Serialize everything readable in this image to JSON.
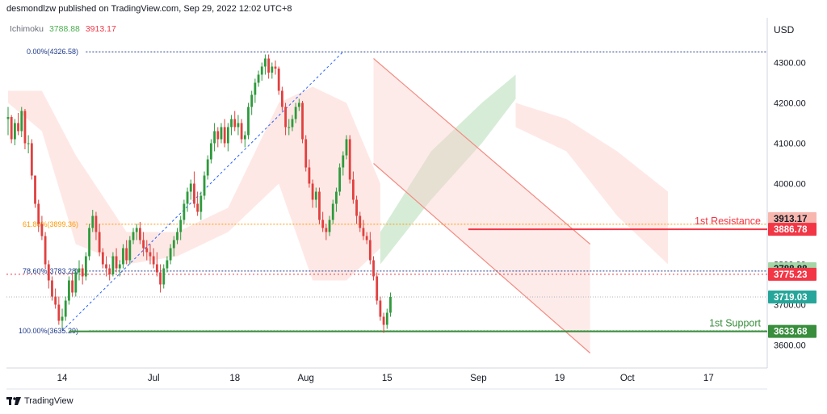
{
  "header": {
    "publisher": "desmondlzw published on TradingView.com, Sep 29, 2022 12:02 UTC+8"
  },
  "indicator": {
    "name": "Ichimoku",
    "value_a": "3788.88",
    "value_b": "3913.17"
  },
  "axis": {
    "currency": "USD"
  },
  "footer": {
    "brand": "TradingView"
  },
  "colors": {
    "up": "#26a69a",
    "up_candle": "#2e9a3c",
    "down": "#f23645",
    "down_candle": "#e0403f",
    "fib_line": "#2962ff",
    "fib_618": "#ff9800",
    "support": "#388e3c",
    "resistance": "#f23645",
    "cloud_green": "#c8e6c9",
    "cloud_red": "#fde0dc",
    "channel": "#f28b82"
  },
  "chart_data": {
    "type": "candlestick",
    "y_axis": {
      "min": 3550,
      "max": 4360,
      "ticks": [
        3600,
        3700,
        3800,
        3900,
        4000,
        4100,
        4200,
        4300
      ],
      "tick_labels": [
        "3600.00",
        "3700.00",
        "3800.00",
        "3900.00",
        "4000.00",
        "4100.00",
        "4200.00",
        "4300.00"
      ]
    },
    "x_axis": {
      "ticks": [
        {
          "label": "14",
          "bar": 16
        },
        {
          "label": "Jul",
          "bar": 43
        },
        {
          "label": "18",
          "bar": 67
        },
        {
          "label": "Aug",
          "bar": 88
        },
        {
          "label": "15",
          "bar": 112
        },
        {
          "label": "Sep",
          "bar": 139
        },
        {
          "label": "19",
          "bar": 163
        },
        {
          "label": "Oct",
          "bar": 183
        },
        {
          "label": "17",
          "bar": 207
        }
      ]
    },
    "price_labels": [
      {
        "text": "3913.17",
        "value": 3913.17,
        "color": "#f7b7ae",
        "text_color": "#131722"
      },
      {
        "text": "3886.78",
        "value": 3886.78,
        "color": "#f23645",
        "text_color": "#ffffff"
      },
      {
        "text": "3788.88",
        "value": 3788.88,
        "color": "#a5d6a7",
        "text_color": "#131722"
      },
      {
        "text": "3775.23",
        "value": 3775.23,
        "color": "#f23645",
        "text_color": "#ffffff"
      },
      {
        "text": "3719.03",
        "value": 3719.03,
        "color": "#26a69a",
        "text_color": "#ffffff"
      },
      {
        "text": "3633.68",
        "value": 3633.68,
        "color": "#388e3c",
        "text_color": "#ffffff"
      }
    ],
    "fibonacci": [
      {
        "label": "0.00%(4326.58)",
        "value": 4326.58
      },
      {
        "label": "61.80%(3899.36)",
        "value": 3899.36
      },
      {
        "label": "78.60%(3783.28)",
        "value": 3783.28
      },
      {
        "label": "100.00%(3635.29)",
        "value": 3635.29
      }
    ],
    "annotations": [
      {
        "text": "1st Resistance",
        "value": 3886.78
      },
      {
        "text": "1st Support",
        "value": 3633.68
      }
    ],
    "candles": [
      [
        4160,
        4190,
        4120,
        4165
      ],
      [
        4165,
        4170,
        4100,
        4110
      ],
      [
        4110,
        4160,
        4095,
        4150
      ],
      [
        4150,
        4175,
        4120,
        4130
      ],
      [
        4130,
        4190,
        4115,
        4180
      ],
      [
        4180,
        4185,
        4085,
        4100
      ],
      [
        4100,
        4120,
        4075,
        4100
      ],
      [
        4100,
        4110,
        4010,
        4020
      ],
      [
        4020,
        4020,
        3940,
        3950
      ],
      [
        3950,
        3960,
        3880,
        3900
      ],
      [
        3900,
        3920,
        3860,
        3870
      ],
      [
        3870,
        3880,
        3790,
        3800
      ],
      [
        3800,
        3810,
        3740,
        3760
      ],
      [
        3760,
        3770,
        3710,
        3720
      ],
      [
        3720,
        3740,
        3690,
        3700
      ],
      [
        3700,
        3720,
        3650,
        3660
      ],
      [
        3660,
        3690,
        3640,
        3670
      ],
      [
        3670,
        3720,
        3660,
        3710
      ],
      [
        3710,
        3770,
        3700,
        3760
      ],
      [
        3760,
        3780,
        3720,
        3730
      ],
      [
        3730,
        3790,
        3720,
        3780
      ],
      [
        3780,
        3810,
        3760,
        3790
      ],
      [
        3790,
        3800,
        3750,
        3770
      ],
      [
        3770,
        3830,
        3760,
        3820
      ],
      [
        3820,
        3900,
        3810,
        3890
      ],
      [
        3890,
        3935,
        3880,
        3920
      ],
      [
        3920,
        3930,
        3860,
        3880
      ],
      [
        3880,
        3900,
        3820,
        3830
      ],
      [
        3830,
        3840,
        3790,
        3800
      ],
      [
        3800,
        3820,
        3770,
        3790
      ],
      [
        3790,
        3800,
        3760,
        3775
      ],
      [
        3775,
        3830,
        3770,
        3820
      ],
      [
        3820,
        3840,
        3780,
        3790
      ],
      [
        3790,
        3810,
        3770,
        3800
      ],
      [
        3800,
        3850,
        3790,
        3840
      ],
      [
        3840,
        3860,
        3800,
        3810
      ],
      [
        3810,
        3870,
        3800,
        3860
      ],
      [
        3860,
        3890,
        3850,
        3880
      ],
      [
        3880,
        3900,
        3860,
        3890
      ],
      [
        3890,
        3905,
        3850,
        3860
      ],
      [
        3860,
        3880,
        3820,
        3840
      ],
      [
        3840,
        3860,
        3810,
        3830
      ],
      [
        3830,
        3850,
        3800,
        3820
      ],
      [
        3820,
        3840,
        3790,
        3800
      ],
      [
        3800,
        3830,
        3770,
        3780
      ],
      [
        3780,
        3800,
        3730,
        3750
      ],
      [
        3750,
        3800,
        3740,
        3790
      ],
      [
        3790,
        3820,
        3780,
        3810
      ],
      [
        3810,
        3850,
        3800,
        3840
      ],
      [
        3840,
        3870,
        3820,
        3860
      ],
      [
        3860,
        3890,
        3850,
        3880
      ],
      [
        3880,
        3920,
        3860,
        3910
      ],
      [
        3910,
        3960,
        3900,
        3950
      ],
      [
        3950,
        3990,
        3930,
        3980
      ],
      [
        3980,
        4010,
        3960,
        4000
      ],
      [
        4000,
        4030,
        3940,
        3950
      ],
      [
        3950,
        3980,
        3920,
        3930
      ],
      [
        3930,
        3980,
        3910,
        3970
      ],
      [
        3970,
        4030,
        3960,
        4020
      ],
      [
        4020,
        4070,
        4010,
        4060
      ],
      [
        4060,
        4110,
        4050,
        4100
      ],
      [
        4100,
        4150,
        4080,
        4130
      ],
      [
        4130,
        4140,
        4090,
        4110
      ],
      [
        4110,
        4150,
        4100,
        4140
      ],
      [
        4140,
        4160,
        4090,
        4100
      ],
      [
        4100,
        4150,
        4080,
        4140
      ],
      [
        4140,
        4170,
        4120,
        4160
      ],
      [
        4160,
        4180,
        4130,
        4140
      ],
      [
        4140,
        4170,
        4120,
        4150
      ],
      [
        4150,
        4160,
        4100,
        4110
      ],
      [
        4110,
        4130,
        4090,
        4120
      ],
      [
        4120,
        4200,
        4110,
        4190
      ],
      [
        4190,
        4230,
        4170,
        4220
      ],
      [
        4220,
        4260,
        4200,
        4250
      ],
      [
        4250,
        4280,
        4240,
        4270
      ],
      [
        4270,
        4300,
        4255,
        4290
      ],
      [
        4290,
        4320,
        4270,
        4310
      ],
      [
        4310,
        4320,
        4260,
        4275
      ],
      [
        4275,
        4300,
        4260,
        4290
      ],
      [
        4290,
        4305,
        4270,
        4285
      ],
      [
        4285,
        4290,
        4220,
        4230
      ],
      [
        4230,
        4240,
        4180,
        4190
      ],
      [
        4190,
        4200,
        4120,
        4140
      ],
      [
        4140,
        4160,
        4120,
        4140
      ],
      [
        4140,
        4170,
        4130,
        4160
      ],
      [
        4160,
        4200,
        4150,
        4190
      ],
      [
        4190,
        4210,
        4180,
        4200
      ],
      [
        4200,
        4205,
        4100,
        4110
      ],
      [
        4110,
        4120,
        4030,
        4040
      ],
      [
        4040,
        4060,
        3990,
        4000
      ],
      [
        4000,
        4010,
        3940,
        3960
      ],
      [
        3960,
        3990,
        3940,
        3980
      ],
      [
        3980,
        3990,
        3900,
        3910
      ],
      [
        3910,
        3930,
        3880,
        3890
      ],
      [
        3890,
        3900,
        3860,
        3880
      ],
      [
        3880,
        3920,
        3870,
        3910
      ],
      [
        3910,
        3960,
        3900,
        3950
      ],
      [
        3950,
        3990,
        3930,
        3980
      ],
      [
        3980,
        4050,
        3970,
        4040
      ],
      [
        4040,
        4080,
        4020,
        4070
      ],
      [
        4070,
        4120,
        4060,
        4110
      ],
      [
        4110,
        4120,
        4000,
        4010
      ],
      [
        4010,
        4030,
        3950,
        3960
      ],
      [
        3960,
        3970,
        3900,
        3920
      ],
      [
        3920,
        3930,
        3880,
        3890
      ],
      [
        3890,
        3910,
        3860,
        3870
      ],
      [
        3870,
        3880,
        3850,
        3860
      ],
      [
        3860,
        3880,
        3800,
        3810
      ],
      [
        3810,
        3820,
        3760,
        3770
      ],
      [
        3770,
        3780,
        3700,
        3710
      ],
      [
        3710,
        3720,
        3660,
        3670
      ],
      [
        3670,
        3680,
        3630,
        3650
      ],
      [
        3650,
        3690,
        3640,
        3680
      ],
      [
        3680,
        3730,
        3670,
        3719
      ]
    ],
    "cloud_segments": [
      {
        "color": "red",
        "points": [
          [
            0,
            4200,
            4230
          ],
          [
            10,
            4130,
            4230
          ],
          [
            20,
            3850,
            4070
          ],
          [
            35,
            3800,
            3880
          ],
          [
            50,
            3820,
            3880
          ],
          [
            65,
            3880,
            3940
          ],
          [
            80,
            4000,
            4200
          ],
          [
            90,
            3760,
            4240
          ],
          [
            100,
            3760,
            4200
          ],
          [
            110,
            3840,
            4000
          ]
        ]
      },
      {
        "color": "green",
        "points": [
          [
            110,
            3800,
            3880
          ],
          [
            125,
            3960,
            4080
          ],
          [
            140,
            4100,
            4200
          ],
          [
            150,
            4210,
            4270
          ]
        ]
      },
      {
        "color": "red",
        "points": [
          [
            150,
            4140,
            4200
          ],
          [
            165,
            4080,
            4160
          ],
          [
            180,
            3920,
            4080
          ],
          [
            195,
            3800,
            3980
          ]
        ]
      }
    ],
    "channel": {
      "upper": [
        [
          108,
          4310
        ],
        [
          172,
          3850
        ]
      ],
      "lower": [
        [
          108,
          4050
        ],
        [
          172,
          3580
        ]
      ]
    },
    "fib_diagonal": [
      [
        16,
        3635.29
      ],
      [
        99,
        4326.58
      ]
    ],
    "resistance_line": {
      "from_bar": 136,
      "to_bar": 216,
      "value": 3886.78
    },
    "support_line": {
      "from_bar": 18,
      "to_bar": 216,
      "value": 3633.68
    }
  }
}
